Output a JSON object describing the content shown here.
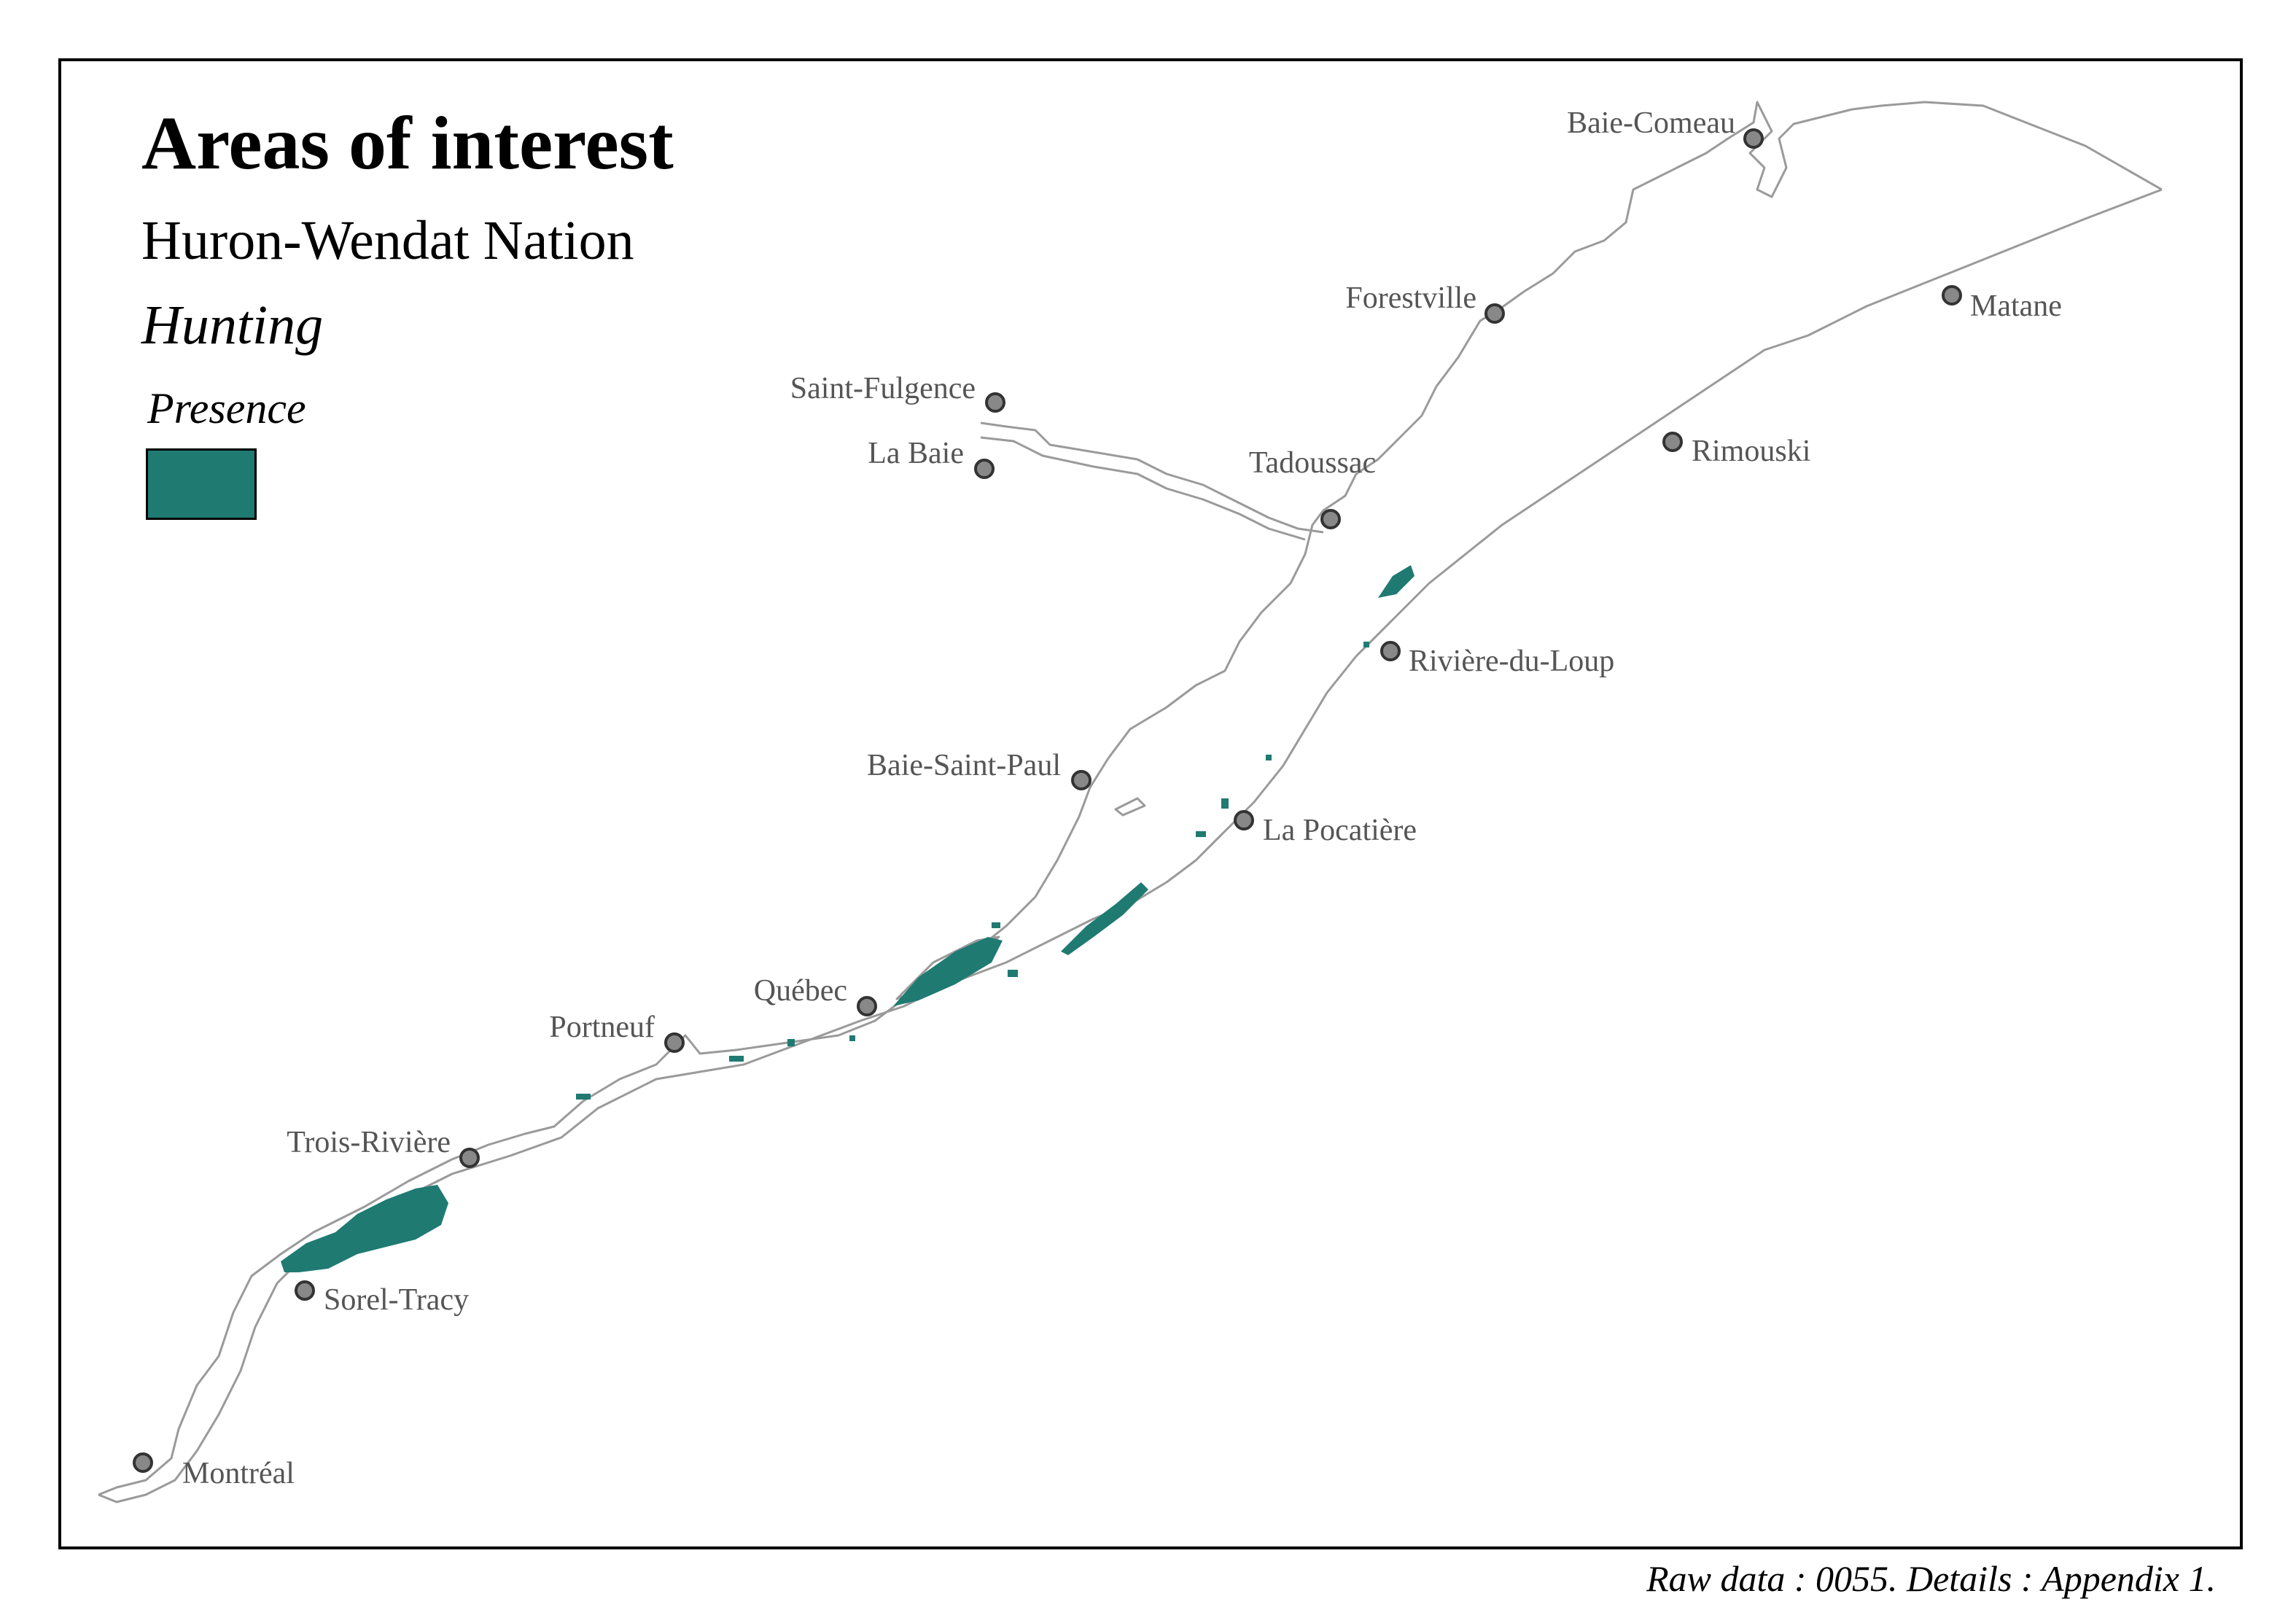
{
  "title": "Areas of interest",
  "subtitle": "Huron-Wendat Nation",
  "activity": "Hunting",
  "legend": {
    "title": "Presence",
    "color": "#1f7a72"
  },
  "caption": "Raw data : 0055. Details : Appendix 1.",
  "colors": {
    "presence_fill": "#1f7a72",
    "coastline": "#9a9a9a",
    "city_marker_fill": "#888888",
    "city_marker_stroke": "#333333",
    "label": "#555555",
    "frame": "#000000"
  },
  "cities": [
    {
      "name": "Baie-Comeau"
    },
    {
      "name": "Forestville"
    },
    {
      "name": "Matane"
    },
    {
      "name": "Saint-Fulgence"
    },
    {
      "name": "La Baie"
    },
    {
      "name": "Tadoussac"
    },
    {
      "name": "Rimouski"
    },
    {
      "name": "Rivière-du-Loup"
    },
    {
      "name": "Baie-Saint-Paul"
    },
    {
      "name": "La Pocatière"
    },
    {
      "name": "Québec"
    },
    {
      "name": "Portneuf"
    },
    {
      "name": "Trois-Rivière"
    },
    {
      "name": "Sorel-Tracy"
    },
    {
      "name": "Montréal"
    }
  ]
}
